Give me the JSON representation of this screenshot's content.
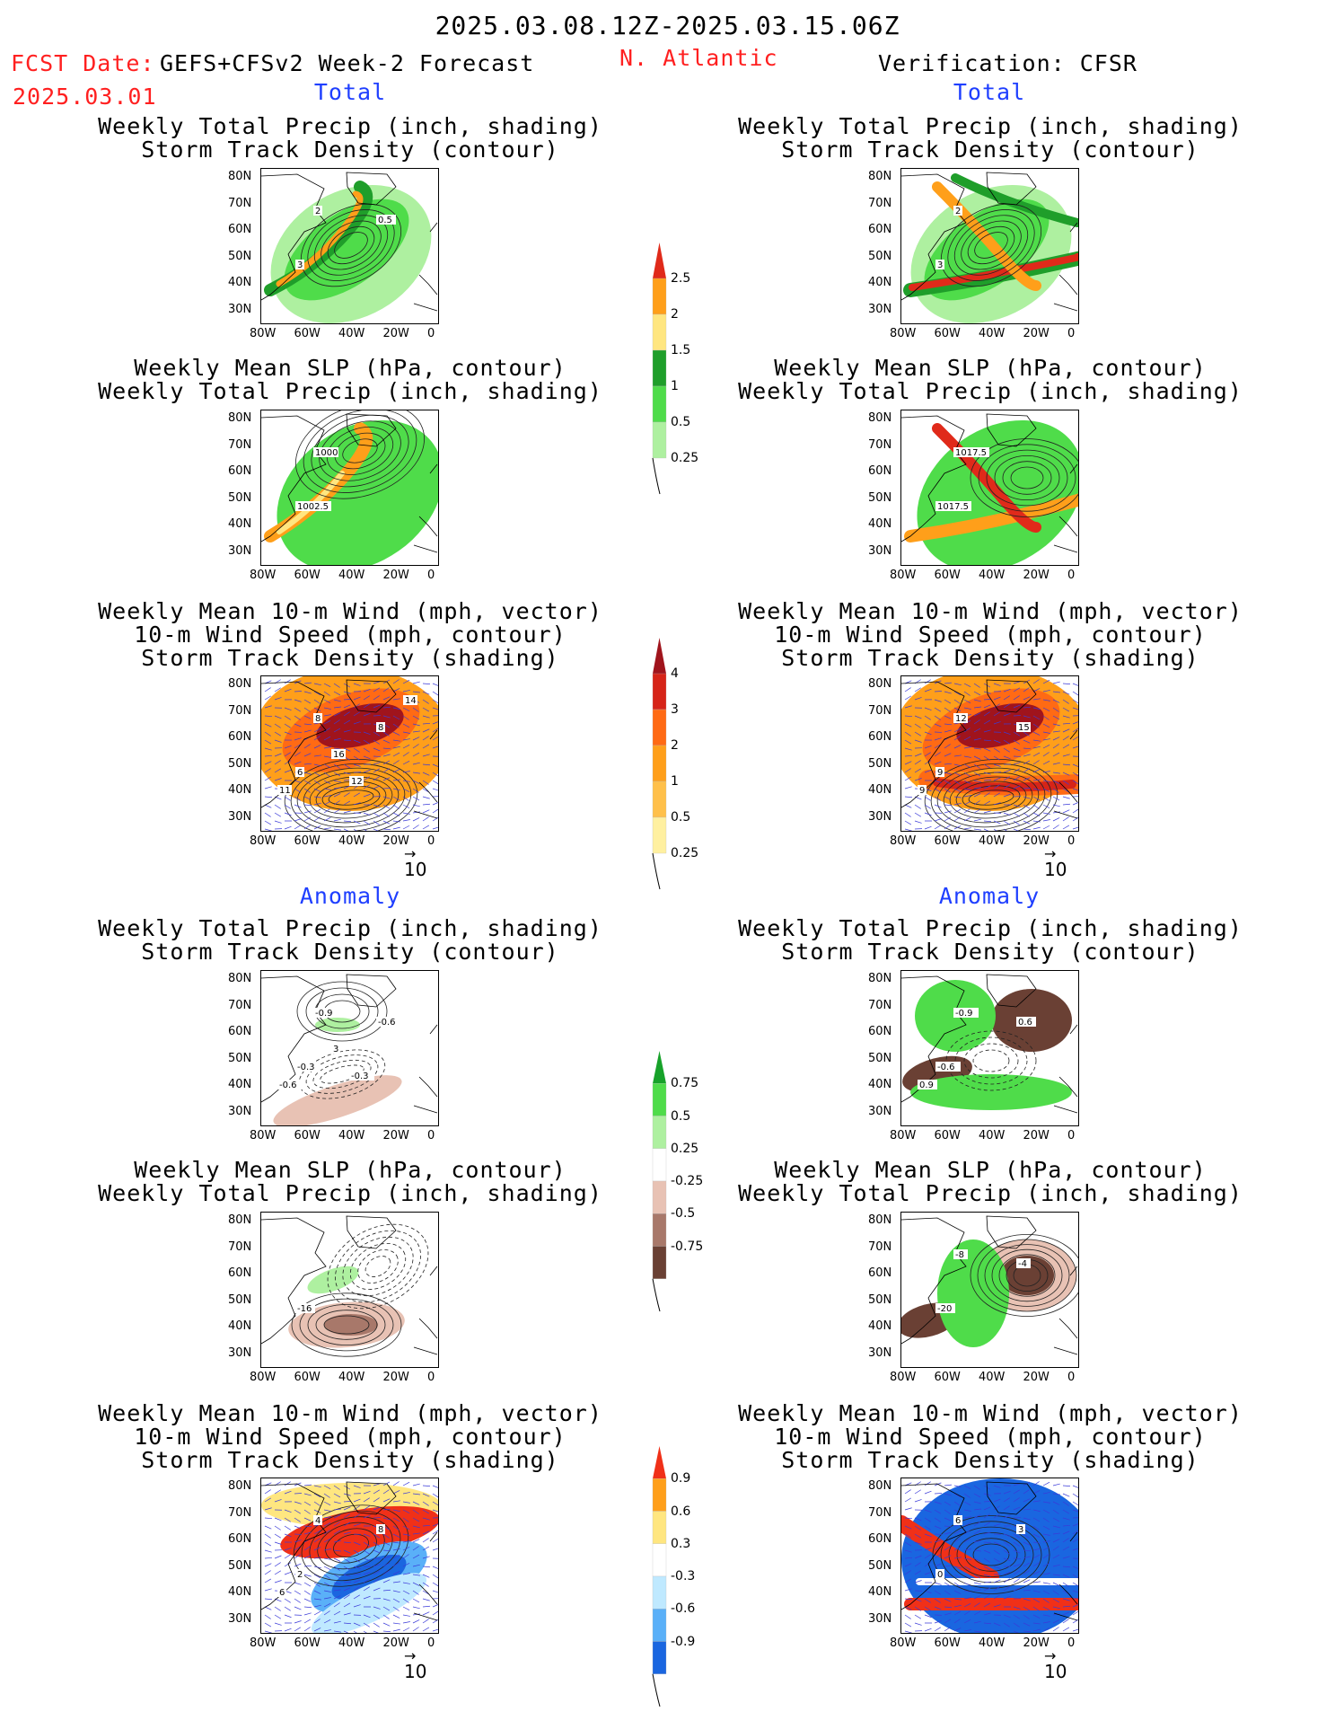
{
  "header": {
    "period": "2025.03.08.12Z-2025.03.15.06Z",
    "fcst_label": "FCST Date:",
    "fcst_date": "2025.03.01",
    "model": "GEFS+CFSv2 Week-2 Forecast",
    "region": "N. Atlantic",
    "verification": "Verification: CFSR"
  },
  "sections": {
    "total": "Total",
    "anomaly": "Anomaly"
  },
  "panel_titles": {
    "precip_track": [
      "Weekly Total Precip (inch, shading)",
      "Storm Track Density (contour)"
    ],
    "slp_precip": [
      "Weekly Mean SLP (hPa, contour)",
      "Weekly Total Precip (inch, shading)"
    ],
    "wind_track": [
      "Weekly Mean 10-m Wind (mph, vector)",
      "10-m Wind Speed (mph, contour)",
      "Storm Track Density (shading)"
    ]
  },
  "axes": {
    "lat_ticks": [
      "80N",
      "70N",
      "60N",
      "50N",
      "40N",
      "30N"
    ],
    "lon_ticks": [
      "80W",
      "60W",
      "40W",
      "20W",
      "0"
    ]
  },
  "vector_ref": "10",
  "colorbars": {
    "precip_total": {
      "labels": [
        "2.5",
        "2",
        "1.5",
        "1",
        "0.5",
        "0.25"
      ],
      "colors": [
        "#e02a1a",
        "#ff9f1a",
        "#ffe680",
        "#1f9e2a",
        "#4fdc4a",
        "#aef0a0"
      ]
    },
    "track_total": {
      "labels": [
        "4",
        "3",
        "2",
        "1",
        "0.5",
        "0.25"
      ],
      "colors": [
        "#a0141c",
        "#d62418",
        "#ff6a14",
        "#ff9f1a",
        "#ffc04a",
        "#fff0a0"
      ]
    },
    "precip_anom": {
      "labels": [
        "0.75",
        "0.5",
        "0.25",
        "-0.25",
        "-0.5",
        "-0.75"
      ],
      "colors": [
        "#17a22a",
        "#4fdc4a",
        "#aef0a0",
        "#ffffff",
        "#e8c2b4",
        "#a8786a",
        "#6a4034"
      ]
    },
    "track_anom": {
      "labels": [
        "0.9",
        "0.6",
        "0.3",
        "-0.3",
        "-0.6",
        "-0.9"
      ],
      "colors": [
        "#f03018",
        "#ff9f1a",
        "#ffe680",
        "#ffffff",
        "#bfe9ff",
        "#5ab0f8",
        "#1a66e0"
      ]
    }
  },
  "contour_labels": {
    "fc_total_precip": [
      "3",
      "2",
      "0.5"
    ],
    "vf_total_precip": [
      "3",
      "2"
    ],
    "fc_total_slp": [
      "1002.5",
      "1000"
    ],
    "vf_total_slp": [
      "1017.5",
      "1017.5"
    ],
    "fc_total_wind": [
      "6",
      "8",
      "8",
      "11",
      "12",
      "16",
      "14"
    ],
    "vf_total_wind": [
      "9",
      "12",
      "15",
      "9"
    ],
    "fc_anom_precip": [
      "-0.3",
      "-0.9",
      "-0.6",
      "-0.6",
      "-0.3",
      "3"
    ],
    "vf_anom_precip": [
      "-0.6",
      "-0.9",
      "0.6",
      "0.9"
    ],
    "fc_anom_slp": [
      "-16"
    ],
    "vf_anom_slp": [
      "-20",
      "-8",
      "-4"
    ],
    "fc_anom_wind": [
      "2",
      "4",
      "8",
      "6"
    ],
    "vf_anom_wind": [
      "0",
      "6",
      "3"
    ]
  },
  "chart_data": [
    {
      "type": "heatmap",
      "panel": "forecast-total-precip",
      "shading": "Weekly Total Precip (inch)",
      "contour": "Storm Track Density",
      "contour_levels": [
        0.5,
        2,
        3
      ],
      "shading_max": 2.5
    },
    {
      "type": "heatmap",
      "panel": "verification-total-precip",
      "shading": "Weekly Total Precip (inch)",
      "contour": "Storm Track Density",
      "contour_levels": [
        2,
        3
      ],
      "shading_max": 2.5
    },
    {
      "type": "heatmap",
      "panel": "forecast-total-slp",
      "shading": "Weekly Total Precip (inch)",
      "contour": "Weekly Mean SLP (hPa)",
      "contour_levels": [
        1000,
        1002.5
      ]
    },
    {
      "type": "heatmap",
      "panel": "verification-total-slp",
      "shading": "Weekly Total Precip (inch)",
      "contour": "Weekly Mean SLP (hPa)",
      "contour_levels": [
        1017.5
      ]
    },
    {
      "type": "heatmap",
      "panel": "forecast-total-wind",
      "shading": "Storm Track Density",
      "contour": "10-m Wind Speed (mph)",
      "contour_levels": [
        6,
        8,
        11,
        12,
        14,
        16
      ]
    },
    {
      "type": "heatmap",
      "panel": "verification-total-wind",
      "shading": "Storm Track Density",
      "contour": "10-m Wind Speed (mph)",
      "contour_levels": [
        9,
        12,
        15
      ]
    },
    {
      "type": "heatmap",
      "panel": "forecast-anomaly-precip",
      "shading": "Weekly Total Precip anomaly (inch)",
      "contour": "Storm Track Density anomaly",
      "contour_levels": [
        -0.9,
        -0.6,
        -0.3,
        3
      ]
    },
    {
      "type": "heatmap",
      "panel": "verification-anomaly-precip",
      "shading": "Weekly Total Precip anomaly (inch)",
      "contour": "Storm Track Density anomaly",
      "contour_levels": [
        -0.9,
        -0.6,
        0.6,
        0.9
      ]
    },
    {
      "type": "heatmap",
      "panel": "forecast-anomaly-slp",
      "shading": "Weekly Total Precip anomaly (inch)",
      "contour": "Weekly Mean SLP anomaly (hPa)",
      "contour_levels": [
        -16
      ]
    },
    {
      "type": "heatmap",
      "panel": "verification-anomaly-slp",
      "shading": "Weekly Total Precip anomaly (inch)",
      "contour": "Weekly Mean SLP anomaly (hPa)",
      "contour_levels": [
        -20,
        -8,
        -4
      ]
    },
    {
      "type": "heatmap",
      "panel": "forecast-anomaly-wind",
      "shading": "Storm Track Density anomaly",
      "contour": "10-m Wind Speed anomaly (mph)",
      "contour_levels": [
        2,
        4,
        6,
        8
      ]
    },
    {
      "type": "heatmap",
      "panel": "verification-anomaly-wind",
      "shading": "Storm Track Density anomaly",
      "contour": "10-m Wind Speed anomaly (mph)",
      "contour_levels": [
        0,
        3,
        6
      ]
    }
  ]
}
